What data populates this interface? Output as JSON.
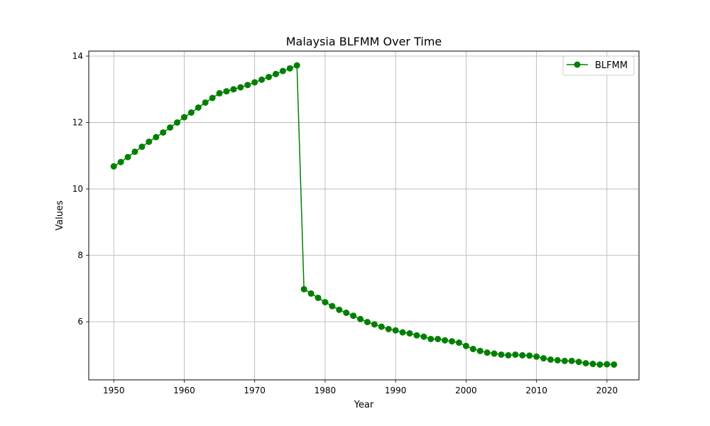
{
  "chart_data": {
    "type": "line",
    "title": "Malaysia BLFMM Over Time",
    "xlabel": "Year",
    "ylabel": "Values",
    "xlim": [
      1946.45,
      2024.55
    ],
    "ylim": [
      4.25,
      14.15
    ],
    "xticks": [
      1950,
      1960,
      1970,
      1980,
      1990,
      2000,
      2010,
      2020
    ],
    "yticks": [
      6,
      8,
      10,
      12,
      14
    ],
    "grid": true,
    "legend": {
      "placement": "top-right"
    },
    "series": [
      {
        "name": "BLFMM",
        "color": "#008000",
        "marker": "circle",
        "x": [
          1950,
          1951,
          1952,
          1953,
          1954,
          1955,
          1956,
          1957,
          1958,
          1959,
          1960,
          1961,
          1962,
          1963,
          1964,
          1965,
          1966,
          1967,
          1968,
          1969,
          1970,
          1971,
          1972,
          1973,
          1974,
          1975,
          1976,
          1977,
          1978,
          1979,
          1980,
          1981,
          1982,
          1983,
          1984,
          1985,
          1986,
          1987,
          1988,
          1989,
          1990,
          1991,
          1992,
          1993,
          1994,
          1995,
          1996,
          1997,
          1998,
          1999,
          2000,
          2001,
          2002,
          2003,
          2004,
          2005,
          2006,
          2007,
          2008,
          2009,
          2010,
          2011,
          2012,
          2013,
          2014,
          2015,
          2016,
          2017,
          2018,
          2019,
          2020,
          2021
        ],
        "values": [
          10.68,
          10.81,
          10.96,
          11.12,
          11.27,
          11.42,
          11.56,
          11.7,
          11.85,
          12.0,
          12.16,
          12.3,
          12.45,
          12.6,
          12.74,
          12.88,
          12.94,
          13.0,
          13.06,
          13.13,
          13.21,
          13.29,
          13.37,
          13.46,
          13.55,
          13.63,
          13.72,
          6.98,
          6.85,
          6.72,
          6.59,
          6.47,
          6.36,
          6.27,
          6.18,
          6.08,
          5.99,
          5.92,
          5.85,
          5.78,
          5.74,
          5.68,
          5.65,
          5.59,
          5.55,
          5.48,
          5.48,
          5.44,
          5.41,
          5.37,
          5.27,
          5.18,
          5.12,
          5.07,
          5.04,
          5.01,
          4.99,
          5.01,
          4.99,
          4.98,
          4.95,
          4.9,
          4.86,
          4.84,
          4.82,
          4.82,
          4.79,
          4.75,
          4.73,
          4.71,
          4.72,
          4.71
        ]
      }
    ]
  }
}
